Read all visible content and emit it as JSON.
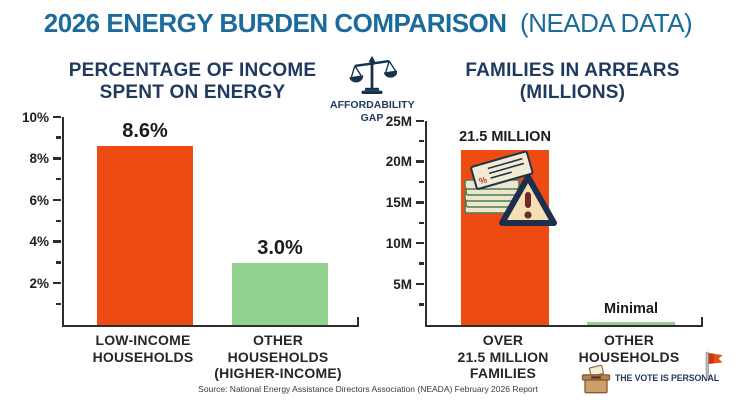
{
  "header": {
    "title_bold": "2026 ENERGY BURDEN COMPARISON",
    "title_light": "(NEADA DATA)"
  },
  "affordability_gap": {
    "icon": "balance-scale-icon",
    "line1": "AFFORDABILITY",
    "line2": "GAP"
  },
  "chart_data": [
    {
      "type": "bar",
      "title": "PERCENTAGE OF INCOME SPENT ON ENERGY",
      "title_lines": [
        "PERCENTAGE OF INCOME",
        "SPENT ON ENERGY"
      ],
      "categories": [
        "LOW-INCOME HOUSEHOLDS",
        "OTHER HOUSEHOLDS (HIGHER-INCOME)"
      ],
      "category_lines": [
        [
          "LOW-INCOME",
          "HOUSEHOLDS"
        ],
        [
          "OTHER",
          "HOUSEHOLDS",
          "(HIGHER-INCOME)"
        ]
      ],
      "values": [
        8.6,
        3.0
      ],
      "value_labels": [
        "8.6%",
        "3.0%"
      ],
      "bar_colors": [
        "#ee4b12",
        "#92d28e"
      ],
      "ylim": [
        0,
        10
      ],
      "yticks": [
        {
          "value": 10,
          "label": "10%"
        },
        {
          "value": 8,
          "label": "8%"
        },
        {
          "value": 6,
          "label": "6%"
        },
        {
          "value": 4,
          "label": "4%"
        },
        {
          "value": 2,
          "label": "2%"
        }
      ],
      "grid": false,
      "legend": null
    },
    {
      "type": "bar",
      "title": "FAMILIES IN ARREARS (MILLIONS)",
      "title_lines": [
        "FAMILIES IN ARREARS",
        "(MILLIONS)"
      ],
      "categories": [
        "OVER 21.5 MILLION FAMILIES",
        "OTHER HOUSEHOLDS"
      ],
      "category_lines": [
        [
          "OVER",
          "21.5 MILLION",
          "FAMILIES"
        ],
        [
          "OTHER",
          "HOUSEHOLDS"
        ]
      ],
      "values": [
        21.5,
        0.4
      ],
      "value_labels": [
        "21.5 MILLION",
        "Minimal"
      ],
      "bar_colors": [
        "#ee4b12",
        "#92d28e"
      ],
      "ylim": [
        0,
        25
      ],
      "yticks": [
        {
          "value": 25,
          "label": "25M"
        },
        {
          "value": 20,
          "label": "20M"
        },
        {
          "value": 15,
          "label": "15M"
        },
        {
          "value": 10,
          "label": "10M"
        },
        {
          "value": 5,
          "label": "5M"
        }
      ],
      "grid": false,
      "legend": null,
      "bar_overlay_icon": "unpaid-bills-warning-icon"
    }
  ],
  "footer": {
    "source": "Source: National Energy Assistance Directors Association (NEADA) February 2026 Report",
    "vote_icon": "ballot-box-icon",
    "vote_label": "THE VOTE IS PERSONAL",
    "flag_icon": "red-flag-icon"
  },
  "colors": {
    "title_blue": "#1c6b9d",
    "heading_navy": "#1f3a5e",
    "bar_orange": "#ee4b12",
    "bar_green": "#92d28e",
    "axis": "#2d2d2d",
    "background": "#ffffff"
  }
}
